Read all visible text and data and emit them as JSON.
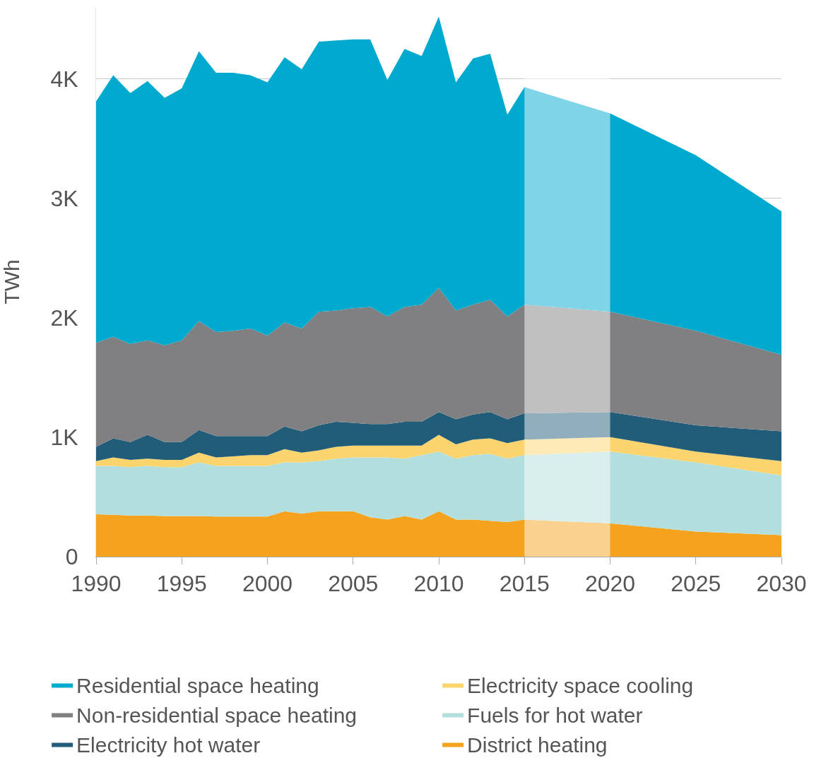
{
  "chart_data": {
    "type": "area",
    "stacked": true,
    "ylabel": "TWh",
    "x": [
      1990,
      1991,
      1992,
      1993,
      1994,
      1995,
      1996,
      1997,
      1998,
      1999,
      2000,
      2001,
      2002,
      2003,
      2004,
      2005,
      2006,
      2007,
      2008,
      2009,
      2010,
      2011,
      2012,
      2013,
      2014,
      2015,
      2020,
      2025,
      2030
    ],
    "series": [
      {
        "name": "District heating",
        "color": "#f5a31e",
        "values": [
          355,
          350,
          345,
          345,
          340,
          340,
          340,
          335,
          335,
          335,
          335,
          380,
          360,
          380,
          380,
          380,
          330,
          310,
          340,
          310,
          380,
          310,
          310,
          300,
          290,
          310,
          280,
          210,
          180
        ]
      },
      {
        "name": "Fuels for hot water",
        "color": "#b2dfdd",
        "values": [
          405,
          410,
          405,
          415,
          410,
          410,
          450,
          425,
          425,
          425,
          425,
          410,
          430,
          420,
          440,
          450,
          500,
          520,
          480,
          540,
          500,
          510,
          540,
          560,
          530,
          540,
          600,
          580,
          500
        ]
      },
      {
        "name": "Electricity space cooling",
        "color": "#fcd46e",
        "values": [
          40,
          70,
          60,
          60,
          60,
          60,
          80,
          70,
          80,
          90,
          90,
          110,
          80,
          90,
          100,
          100,
          100,
          100,
          110,
          80,
          140,
          120,
          130,
          130,
          130,
          130,
          120,
          90,
          120
        ]
      },
      {
        "name": "Electricity hot water",
        "color": "#215d78",
        "values": [
          120,
          160,
          150,
          200,
          150,
          150,
          190,
          180,
          170,
          160,
          160,
          190,
          180,
          210,
          210,
          190,
          180,
          180,
          200,
          200,
          190,
          210,
          210,
          220,
          200,
          220,
          210,
          220,
          250
        ]
      },
      {
        "name": "Non-residential space heating",
        "color": "#808083",
        "values": [
          870,
          850,
          820,
          790,
          810,
          850,
          910,
          870,
          880,
          900,
          840,
          870,
          860,
          950,
          930,
          960,
          980,
          900,
          960,
          980,
          1040,
          910,
          920,
          940,
          860,
          910,
          840,
          790,
          640
        ]
      },
      {
        "name": "Residential space heating",
        "color": "#00a9ce",
        "values": [
          2020,
          2190,
          2100,
          2170,
          2070,
          2110,
          2260,
          2170,
          2160,
          2120,
          2120,
          2220,
          2170,
          2260,
          2260,
          2250,
          2240,
          1980,
          2160,
          2080,
          2270,
          1910,
          2060,
          2060,
          1690,
          1820,
          1660,
          1470,
          1200
        ]
      }
    ],
    "xlim": [
      1990,
      2030
    ],
    "xticks": [
      1990,
      1995,
      2000,
      2005,
      2010,
      2015,
      2020,
      2025,
      2030
    ],
    "ylim": [
      0,
      4600
    ],
    "yticks": [
      0,
      {
        "value": 1000,
        "label": "1K"
      },
      {
        "value": 2000,
        "label": "2K"
      },
      {
        "value": 3000,
        "label": "3K"
      },
      {
        "value": 4000,
        "label": "4K"
      }
    ],
    "bands": [
      {
        "axis": "x",
        "from": 2015,
        "to": 2020,
        "color": "#ffffff"
      }
    ],
    "grid": "y",
    "legend": "bottom"
  }
}
